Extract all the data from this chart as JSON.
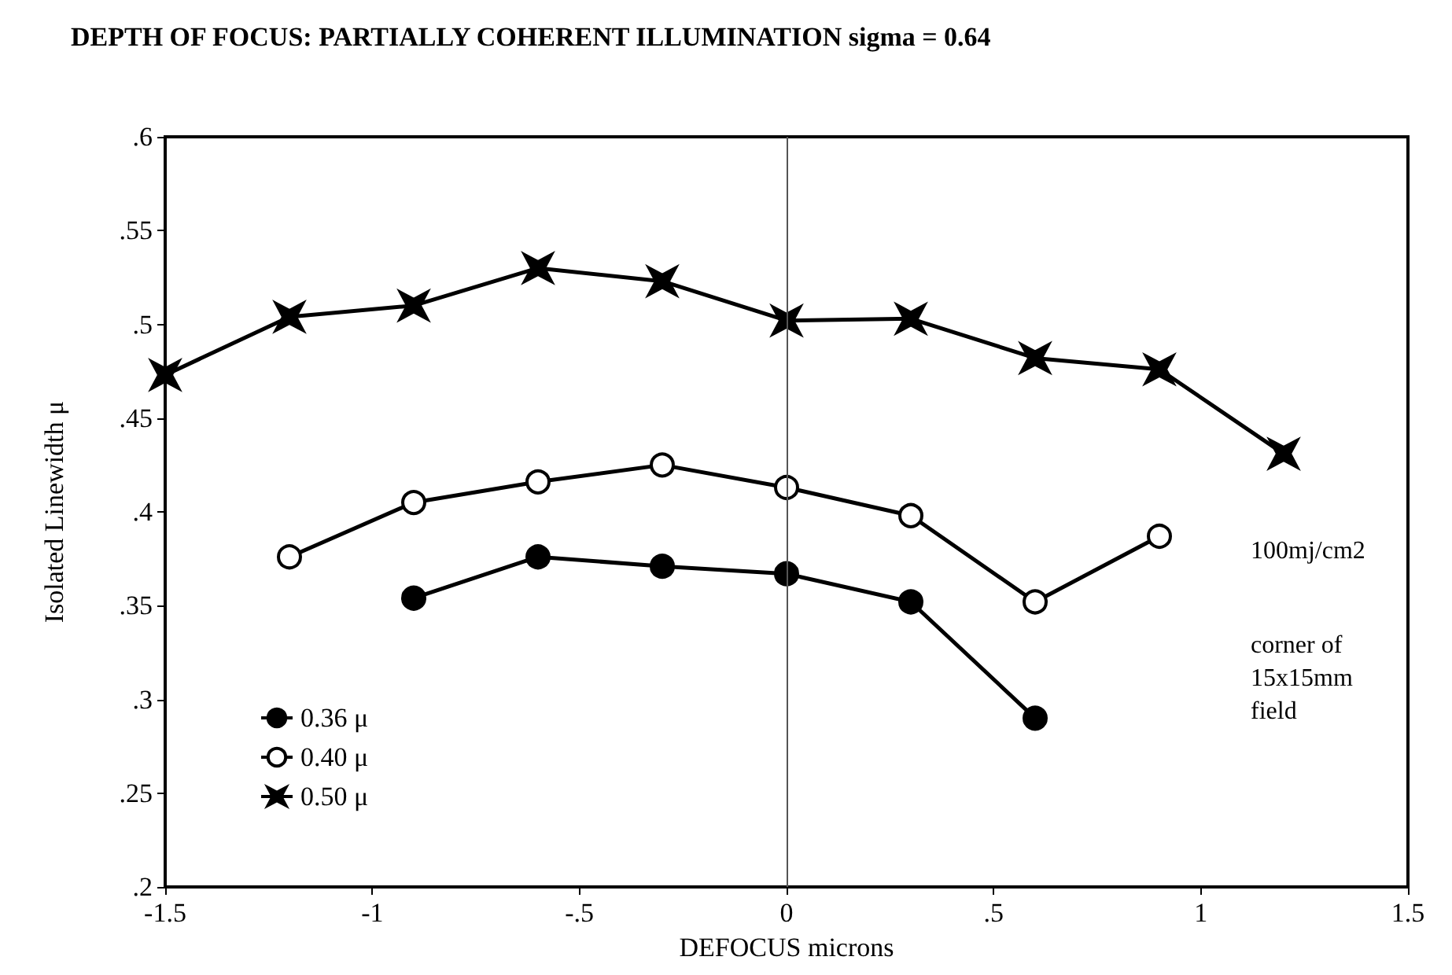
{
  "chart_data": {
    "type": "line",
    "title": "DEPTH OF FOCUS: PARTIALLY COHERENT ILLUMINATION sigma = 0.64",
    "xlabel": "DEFOCUS microns",
    "ylabel": "Isolated Linewidth μ",
    "series": [
      {
        "name": "0.36 μ",
        "color": "#000000",
        "marker": "circle",
        "x": [
          -0.9,
          -0.6,
          -0.3,
          0,
          0.3,
          0.6
        ],
        "values": [
          0.354,
          0.376,
          0.371,
          0.367,
          0.352,
          0.29
        ]
      },
      {
        "name": "0.40 μ",
        "color": "#ffffff",
        "marker": "circle",
        "x": [
          -1.2,
          -0.9,
          -0.6,
          -0.3,
          0,
          0.3,
          0.6,
          0.9
        ],
        "values": [
          0.376,
          0.405,
          0.416,
          0.425,
          0.413,
          0.398,
          0.352,
          0.387
        ]
      },
      {
        "name": "0.50 μ",
        "color": "#000000",
        "marker": "cross",
        "x": [
          -1.5,
          -1.2,
          -0.9,
          -0.6,
          -0.3,
          0,
          0.3,
          0.6,
          0.9,
          1.2
        ],
        "values": [
          0.473,
          0.504,
          0.51,
          0.53,
          0.523,
          0.502,
          0.503,
          0.482,
          0.476,
          0.431
        ]
      }
    ],
    "xlim": [
      -1.5,
      1.5
    ],
    "xticks": [
      -1.5,
      -1,
      {
        "value": -0.5,
        "label": "-.5"
      },
      0,
      {
        "value": 0.5,
        "label": ".5"
      },
      1,
      1.5
    ],
    "ylim": [
      0.2,
      0.6
    ],
    "yticks": [
      {
        "value": 0.2,
        "label": ".2"
      },
      {
        "value": 0.25,
        "label": ".25"
      },
      {
        "value": 0.3,
        "label": ".3"
      },
      {
        "value": 0.35,
        "label": ".35"
      },
      {
        "value": 0.4,
        "label": ".4"
      },
      {
        "value": 0.45,
        "label": ".45"
      },
      {
        "value": 0.5,
        "label": ".5"
      },
      {
        "value": 0.55,
        "label": ".55"
      },
      {
        "value": 0.6,
        "label": ".6"
      }
    ],
    "ref_lines": [
      {
        "axis": "x",
        "value": 0,
        "label": null,
        "color": "#555555"
      }
    ],
    "annotations": [
      "100mj/cm2",
      "corner of\n15x15mm\nfield"
    ],
    "legend": "bottom left",
    "grid": false,
    "line_style": "solid"
  }
}
